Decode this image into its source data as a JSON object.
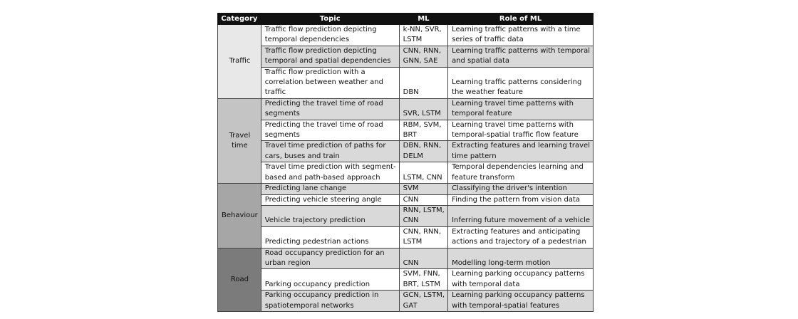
{
  "table": {
    "header": [
      "Category",
      "Topic",
      "ML",
      "Role of ML"
    ],
    "groups": [
      {
        "category": [
          "Traffic"
        ],
        "rows": [
          {
            "topic": [
              "Traffic flow prediction depicting",
              "temporal dependencies"
            ],
            "ml": [
              "k-NN, SVR,",
              "LSTM"
            ],
            "role": [
              "Learning traffic patterns with a time",
              "series of traffic data"
            ]
          },
          {
            "topic": [
              "Traffic flow prediction depicting",
              "temporal and spatial dependencies"
            ],
            "ml": [
              "CNN, RNN,",
              "GNN, SAE"
            ],
            "role": [
              "Learning traffic patterns with temporal",
              "and spatial data"
            ]
          },
          {
            "topic": [
              "Traffic flow prediction with a",
              "correlation between weather and",
              "traffic"
            ],
            "ml": [
              "DBN"
            ],
            "role": [
              "Learning traffic patterns considering",
              "the weather feature"
            ]
          }
        ]
      },
      {
        "category": [
          "Travel",
          "time"
        ],
        "rows": [
          {
            "topic": [
              "Predicting the travel time of road",
              "segments"
            ],
            "ml": [
              "SVR, LSTM"
            ],
            "role": [
              "Learning travel time patterns with",
              "temporal feature"
            ]
          },
          {
            "topic": [
              "Predicting the travel time of road",
              "segments"
            ],
            "ml": [
              "RBM, SVM,",
              "BRT"
            ],
            "role": [
              "Learning travel time patterns with",
              "temporal-spatial traffic flow feature"
            ]
          },
          {
            "topic": [
              "Travel time prediction of paths for",
              "cars, buses and train"
            ],
            "ml": [
              "DBN, RNN,",
              "DELM"
            ],
            "role": [
              "Extracting features and learning travel",
              "time pattern"
            ]
          },
          {
            "topic": [
              "Travel time prediction with segment-",
              "based and path-based approach"
            ],
            "ml": [
              "LSTM, CNN"
            ],
            "role": [
              "Temporal dependencies learning and",
              "feature transform"
            ]
          }
        ]
      },
      {
        "category": [
          "Behaviour"
        ],
        "rows": [
          {
            "topic": [
              "Predicting lane change"
            ],
            "ml": [
              "SVM"
            ],
            "role": [
              "Classifying the driver's intention"
            ]
          },
          {
            "topic": [
              "Predicting vehicle steering angle"
            ],
            "ml": [
              "CNN"
            ],
            "role": [
              "Finding the pattern from vision data"
            ]
          },
          {
            "topic": [
              "Vehicle trajectory prediction"
            ],
            "ml": [
              "RNN, LSTM,",
              "CNN"
            ],
            "role": [
              "Inferring future movement of a vehicle"
            ]
          },
          {
            "topic": [
              "Predicting pedestrian actions"
            ],
            "ml": [
              "CNN, RNN,",
              "LSTM"
            ],
            "role": [
              "Extracting features and anticipating",
              "actions and trajectory of a pedestrian"
            ]
          }
        ]
      },
      {
        "category": [
          "Road"
        ],
        "rows": [
          {
            "topic": [
              "Road occupancy prediction for an",
              "urban region"
            ],
            "ml": [
              "CNN"
            ],
            "role": [
              "Modelling long-term motion"
            ]
          },
          {
            "topic": [
              "Parking occupancy prediction"
            ],
            "ml": [
              "SVM, FNN,",
              "BRT, LSTM"
            ],
            "role": [
              "Learning parking occupancy patterns",
              "with temporal data"
            ]
          },
          {
            "topic": [
              "Parking occupancy prediction in",
              "spatiotemporal networks"
            ],
            "ml": [
              "GCN, LSTM,",
              "GAT"
            ],
            "role": [
              "Learning parking occupancy patterns",
              "with temporal-spatial features"
            ]
          }
        ]
      }
    ]
  }
}
